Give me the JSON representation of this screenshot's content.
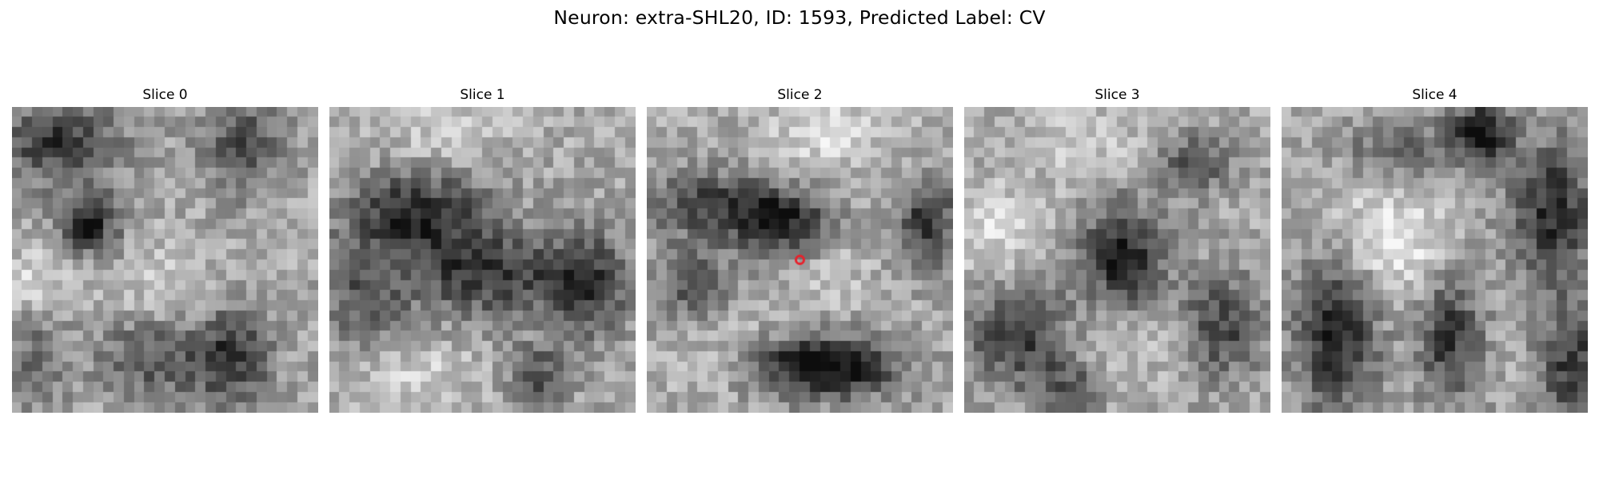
{
  "figure": {
    "title": "Neuron: extra-SHL20, ID: 1593, Predicted Label: CV"
  },
  "panels": [
    {
      "title": "Slice 0",
      "has_marker": false
    },
    {
      "title": "Slice 1",
      "has_marker": false
    },
    {
      "title": "Slice 2",
      "has_marker": true
    },
    {
      "title": "Slice 3",
      "has_marker": false
    },
    {
      "title": "Slice 4",
      "has_marker": false
    }
  ],
  "colors": {
    "background": "#ffffff",
    "marker": "#e8212b",
    "colormap": "grayscale"
  }
}
